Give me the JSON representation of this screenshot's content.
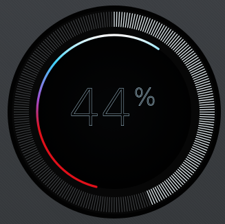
{
  "widget": {
    "value": "44",
    "unit": "%",
    "progress": 0.44
  },
  "colors": {
    "background": "#3a3d40",
    "ring_outer": "#050505",
    "dial_face": "#000000",
    "tick_active": "#e9f3f8",
    "tick_inactive": "#555a5e",
    "arc_top": "#ffffff",
    "arc_cyan": "#3fd3ff",
    "arc_purple": "#a24fd3",
    "arc_red": "#e0101a",
    "text": "#b9dcef"
  },
  "icons": {
    "gauge": "circular-progress-gauge"
  }
}
